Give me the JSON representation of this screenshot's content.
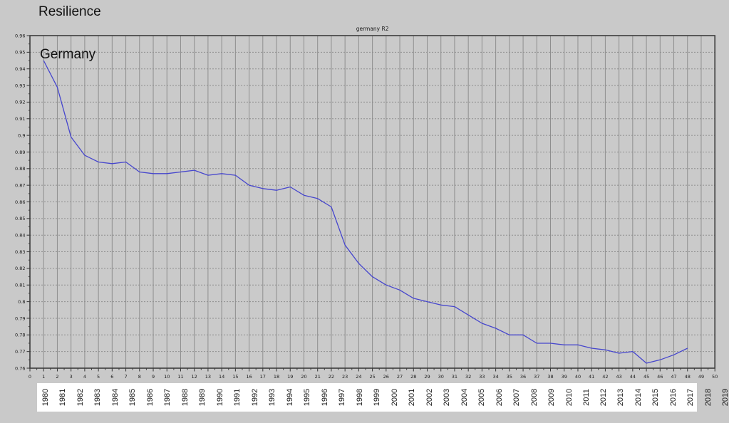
{
  "page": {
    "title": "Resilience",
    "background_color": "#c9c9c9"
  },
  "chart": {
    "subtitle": "germany R2",
    "inner_label": "Germany",
    "line_color": "#4646cd",
    "grid_color": "#8e8e8e",
    "spine_color": "#3c3c3c",
    "plot_background": "#cacaca"
  },
  "chart_data": {
    "type": "line",
    "title": "germany R2",
    "xlabel": "",
    "ylabel": "",
    "xlim": [
      0,
      50
    ],
    "ylim": [
      0.76,
      0.96
    ],
    "grid": true,
    "legend_position": "none",
    "x_tick_step": 1,
    "y_tick_step": 0.01,
    "x_minor_step": 0.5,
    "y_minor_step": 0.005,
    "x_ticks": [
      0,
      1,
      2,
      3,
      4,
      5,
      6,
      7,
      8,
      9,
      10,
      11,
      12,
      13,
      14,
      15,
      16,
      17,
      18,
      19,
      20,
      21,
      22,
      23,
      24,
      25,
      26,
      27,
      28,
      29,
      30,
      31,
      32,
      33,
      34,
      35,
      36,
      37,
      38,
      39,
      40,
      41,
      42,
      43,
      44,
      45,
      46,
      47,
      48,
      49,
      50
    ],
    "y_tick_labels": [
      "0.96",
      "0.95",
      "0.94",
      "0.93",
      "0.92",
      "0.91",
      "0.9",
      "0.89",
      "0.88",
      "0.87",
      "0.86",
      "0.85",
      "0.84",
      "0.83",
      "0.82",
      "0.81",
      "0.8",
      "0.79",
      "0.78",
      "0.77",
      "0.76"
    ],
    "y_tick_values": [
      0.96,
      0.95,
      0.94,
      0.93,
      0.92,
      0.91,
      0.9,
      0.89,
      0.88,
      0.87,
      0.86,
      0.85,
      0.84,
      0.83,
      0.82,
      0.81,
      0.8,
      0.79,
      0.78,
      0.77,
      0.76
    ],
    "series": [
      {
        "name": "germany R2",
        "x": [
          1,
          2,
          3,
          4,
          5,
          6,
          7,
          8,
          9,
          10,
          11,
          12,
          13,
          14,
          15,
          16,
          17,
          18,
          19,
          20,
          21,
          22,
          23,
          24,
          25,
          26,
          27,
          28,
          29,
          30,
          31,
          32,
          33,
          34,
          35,
          36,
          37,
          38,
          39,
          40,
          41,
          42,
          43,
          44,
          45,
          46,
          47,
          48
        ],
        "y": [
          0.945,
          0.929,
          0.899,
          0.888,
          0.884,
          0.883,
          0.884,
          0.878,
          0.877,
          0.877,
          0.878,
          0.879,
          0.876,
          0.877,
          0.876,
          0.87,
          0.868,
          0.867,
          0.869,
          0.864,
          0.862,
          0.857,
          0.834,
          0.823,
          0.815,
          0.81,
          0.807,
          0.802,
          0.8,
          0.798,
          0.797,
          0.792,
          0.787,
          0.784,
          0.78,
          0.78,
          0.775,
          0.775,
          0.774,
          0.774,
          0.772,
          0.771,
          0.769,
          0.77,
          0.763,
          0.765,
          0.768,
          0.772
        ]
      }
    ],
    "year_labels": [
      "1980",
      "1981",
      "1982",
      "1983",
      "1984",
      "1985",
      "1986",
      "1987",
      "1988",
      "1989",
      "1990",
      "1991",
      "1992",
      "1993",
      "1994",
      "1995",
      "1996",
      "1997",
      "1998",
      "1999",
      "2000",
      "2001",
      "2002",
      "2003",
      "2004",
      "2005",
      "2006",
      "2007",
      "2008",
      "2009",
      "2010",
      "2011",
      "2012",
      "2013",
      "2014",
      "2015",
      "2016",
      "2017",
      "2018",
      "2019"
    ]
  }
}
